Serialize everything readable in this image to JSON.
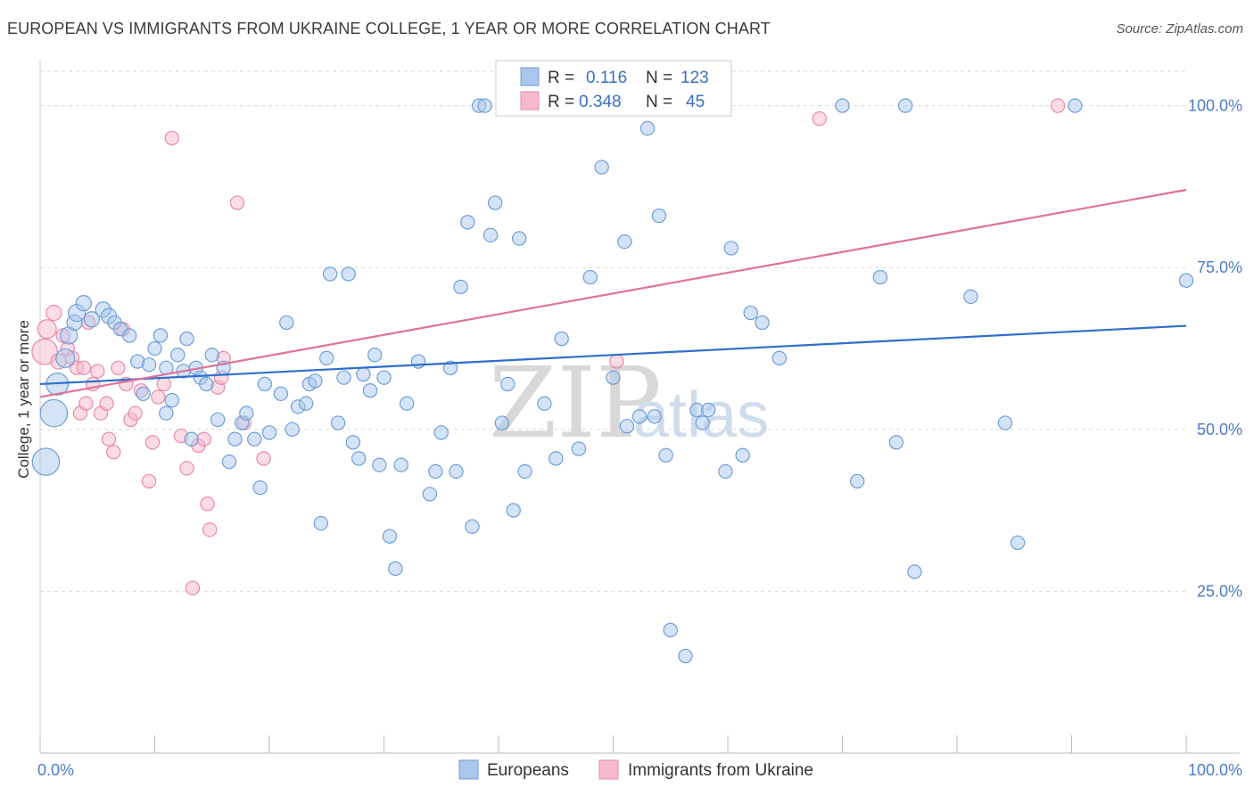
{
  "header": {
    "title": "EUROPEAN VS IMMIGRANTS FROM UKRAINE COLLEGE, 1 YEAR OR MORE CORRELATION CHART",
    "source": "Source: ZipAtlas.com"
  },
  "watermark": {
    "zip": "ZIP",
    "atlas": "atlas"
  },
  "legend": {
    "rows": [
      {
        "r_label": "R =",
        "r_value": "0.116",
        "n_label": "N =",
        "n_value": "123",
        "color": "#a9c7ec"
      },
      {
        "r_label": "R =",
        "r_value": "0.348",
        "n_label": "N =",
        "n_value": "45",
        "color": "#f7b9cc"
      }
    ]
  },
  "bottom_legend": {
    "europeans": "Europeans",
    "ukraine": "Immigrants from Ukraine"
  },
  "colors": {
    "blue_fill": "#a9c7ec",
    "blue_stroke": "#6f9fd8",
    "blue_line": "#2f6fcb",
    "pink_fill": "#f7b9cc",
    "pink_stroke": "#e88aa8",
    "pink_line": "#e0729a",
    "grid": "#d9d9d9",
    "axis_text": "#4a7cc7"
  },
  "chart_data": {
    "type": "scatter",
    "title": "EUROPEAN VS IMMIGRANTS FROM UKRAINE COLLEGE, 1 YEAR OR MORE CORRELATION CHART",
    "xlabel": "",
    "ylabel": "College, 1 year or more",
    "xlim": [
      0,
      100
    ],
    "ylim": [
      0,
      106
    ],
    "x_tick_labels": [
      "0.0%",
      "100.0%"
    ],
    "y_ticks": [
      25,
      50,
      75,
      100
    ],
    "y_tick_labels": [
      "25.0%",
      "50.0%",
      "75.0%",
      "100.0%"
    ],
    "series": [
      {
        "name": "Europeans",
        "R": 0.116,
        "N": 123,
        "trend": {
          "x": [
            0,
            100
          ],
          "y": [
            57.0,
            66.0
          ]
        },
        "points": [
          [
            0.5,
            45,
            1.6
          ],
          [
            1.2,
            52.5,
            1.6
          ],
          [
            1.5,
            57,
            1.3
          ],
          [
            2.2,
            61,
            1.1
          ],
          [
            2.5,
            64.5,
            1
          ],
          [
            3.0,
            66.5,
            0.9
          ],
          [
            3.2,
            68,
            1
          ],
          [
            3.8,
            69.5,
            0.9
          ],
          [
            4.5,
            67,
            0.9
          ],
          [
            5.5,
            68.5,
            0.9
          ],
          [
            6.0,
            67.5,
            0.9
          ],
          [
            6.5,
            66.5,
            0.8
          ],
          [
            7.0,
            65.5,
            0.8
          ],
          [
            7.8,
            64.5,
            0.8
          ],
          [
            8.5,
            60.5,
            0.8
          ],
          [
            9.0,
            55.5,
            0.8
          ],
          [
            9.5,
            60,
            0.8
          ],
          [
            10.0,
            62.5,
            0.8
          ],
          [
            10.5,
            64.5,
            0.8
          ],
          [
            11.0,
            59.5,
            0.8
          ],
          [
            11.0,
            52.5,
            0.8
          ],
          [
            11.5,
            54.5,
            0.8
          ],
          [
            12.0,
            61.5,
            0.8
          ],
          [
            12.5,
            59.0,
            0.8
          ],
          [
            12.8,
            64,
            0.8
          ],
          [
            13.2,
            48.5,
            0.8
          ],
          [
            13.6,
            59.5,
            0.8
          ],
          [
            14.0,
            58,
            0.8
          ],
          [
            14.5,
            57,
            0.8
          ],
          [
            15.0,
            61.5,
            0.8
          ],
          [
            15.5,
            51.5,
            0.8
          ],
          [
            16.0,
            59.5,
            0.8
          ],
          [
            16.5,
            45,
            0.8
          ],
          [
            17.0,
            48.5,
            0.8
          ],
          [
            17.6,
            51,
            0.8
          ],
          [
            18.0,
            52.5,
            0.8
          ],
          [
            18.7,
            48.5,
            0.8
          ],
          [
            19.2,
            41,
            0.8
          ],
          [
            19.6,
            57,
            0.8
          ],
          [
            20.0,
            49.5,
            0.8
          ],
          [
            21.0,
            55.5,
            0.8
          ],
          [
            21.5,
            66.5,
            0.8
          ],
          [
            22.0,
            50,
            0.8
          ],
          [
            22.5,
            53.5,
            0.8
          ],
          [
            23.2,
            54,
            0.8
          ],
          [
            23.5,
            57,
            0.8
          ],
          [
            24.0,
            57.5,
            0.8
          ],
          [
            24.5,
            35.5,
            0.8
          ],
          [
            25.0,
            61,
            0.8
          ],
          [
            25.3,
            74,
            0.8
          ],
          [
            26.0,
            51,
            0.8
          ],
          [
            26.5,
            58,
            0.8
          ],
          [
            26.9,
            74,
            0.8
          ],
          [
            27.3,
            48,
            0.8
          ],
          [
            27.8,
            45.5,
            0.8
          ],
          [
            28.2,
            58.5,
            0.8
          ],
          [
            28.8,
            56,
            0.8
          ],
          [
            29.2,
            61.5,
            0.8
          ],
          [
            29.6,
            44.5,
            0.8
          ],
          [
            30.0,
            58,
            0.8
          ],
          [
            30.5,
            33.5,
            0.8
          ],
          [
            31.0,
            28.5,
            0.8
          ],
          [
            31.5,
            44.5,
            0.8
          ],
          [
            32.0,
            54,
            0.8
          ],
          [
            33.0,
            60.5,
            0.8
          ],
          [
            34.0,
            40,
            0.8
          ],
          [
            34.5,
            43.5,
            0.8
          ],
          [
            35.0,
            49.5,
            0.8
          ],
          [
            35.8,
            59.5,
            0.8
          ],
          [
            36.3,
            43.5,
            0.8
          ],
          [
            36.7,
            72,
            0.8
          ],
          [
            37.3,
            82,
            0.8
          ],
          [
            37.7,
            35,
            0.8
          ],
          [
            38.3,
            100,
            0.8
          ],
          [
            38.8,
            100,
            0.8
          ],
          [
            39.3,
            80,
            0.8
          ],
          [
            39.7,
            85,
            0.8
          ],
          [
            40.3,
            51,
            0.8
          ],
          [
            40.8,
            57,
            0.8
          ],
          [
            41.3,
            37.5,
            0.8
          ],
          [
            41.8,
            79.5,
            0.8
          ],
          [
            42.3,
            43.5,
            0.8
          ],
          [
            43.3,
            100,
            0.8
          ],
          [
            44.0,
            54,
            0.8
          ],
          [
            45.0,
            45.5,
            0.8
          ],
          [
            45.5,
            64,
            0.8
          ],
          [
            47.0,
            47,
            0.8
          ],
          [
            48.0,
            73.5,
            0.8
          ],
          [
            49.0,
            90.5,
            0.8
          ],
          [
            50.0,
            58,
            0.8
          ],
          [
            51.0,
            79,
            0.8
          ],
          [
            51.2,
            50.5,
            0.8
          ],
          [
            52.3,
            52,
            0.8
          ],
          [
            53.0,
            96.5,
            0.8
          ],
          [
            53.6,
            52,
            0.8
          ],
          [
            54.0,
            83,
            0.8
          ],
          [
            54.6,
            46,
            0.8
          ],
          [
            55.0,
            19,
            0.8
          ],
          [
            56.3,
            15,
            0.8
          ],
          [
            57.3,
            53,
            0.8
          ],
          [
            57.8,
            51,
            0.8
          ],
          [
            58.3,
            53,
            0.8
          ],
          [
            59.8,
            43.5,
            0.8
          ],
          [
            60.3,
            78,
            0.8
          ],
          [
            61.3,
            46,
            0.8
          ],
          [
            62.0,
            68,
            0.8
          ],
          [
            63.0,
            66.5,
            0.8
          ],
          [
            64.5,
            61,
            0.8
          ],
          [
            70.0,
            100,
            0.8
          ],
          [
            71.3,
            42,
            0.8
          ],
          [
            73.3,
            73.5,
            0.8
          ],
          [
            74.7,
            48,
            0.8
          ],
          [
            75.5,
            100,
            0.8
          ],
          [
            76.3,
            28,
            0.8
          ],
          [
            81.2,
            70.5,
            0.8
          ],
          [
            84.2,
            51,
            0.8
          ],
          [
            85.3,
            32.5,
            0.8
          ],
          [
            90.3,
            100,
            0.8
          ],
          [
            100,
            73,
            0.8
          ]
        ]
      },
      {
        "name": "Immigrants from Ukraine",
        "R": 0.348,
        "N": 45,
        "trend": {
          "x": [
            0,
            100
          ],
          "y": [
            55.0,
            87.0
          ]
        },
        "points": [
          [
            0.4,
            62,
            1.5
          ],
          [
            0.6,
            65.5,
            1.1
          ],
          [
            1.2,
            68,
            0.9
          ],
          [
            1.6,
            60.5,
            0.9
          ],
          [
            2.0,
            64.5,
            0.8
          ],
          [
            2.4,
            62.5,
            0.8
          ],
          [
            2.8,
            61,
            0.8
          ],
          [
            3.2,
            59.5,
            0.8
          ],
          [
            3.5,
            52.5,
            0.8
          ],
          [
            3.8,
            59.5,
            0.8
          ],
          [
            4.0,
            54,
            0.8
          ],
          [
            4.2,
            66.5,
            0.8
          ],
          [
            4.6,
            57,
            0.8
          ],
          [
            5.0,
            59,
            0.8
          ],
          [
            5.3,
            52.5,
            0.8
          ],
          [
            5.8,
            54,
            0.8
          ],
          [
            6.0,
            48.5,
            0.8
          ],
          [
            6.4,
            46.5,
            0.8
          ],
          [
            6.8,
            59.5,
            0.8
          ],
          [
            7.2,
            65.5,
            0.8
          ],
          [
            7.5,
            57,
            0.8
          ],
          [
            7.9,
            51.5,
            0.8
          ],
          [
            8.3,
            52.5,
            0.8
          ],
          [
            8.8,
            56,
            0.8
          ],
          [
            9.5,
            42,
            0.8
          ],
          [
            9.8,
            48,
            0.8
          ],
          [
            10.3,
            55,
            0.8
          ],
          [
            10.8,
            57,
            0.8
          ],
          [
            11.5,
            95,
            0.8
          ],
          [
            12.3,
            49,
            0.8
          ],
          [
            12.8,
            44,
            0.8
          ],
          [
            13.3,
            25.5,
            0.8
          ],
          [
            13.8,
            47.5,
            0.8
          ],
          [
            14.3,
            48.5,
            0.8
          ],
          [
            14.6,
            38.5,
            0.8
          ],
          [
            14.8,
            34.5,
            0.8
          ],
          [
            15.5,
            56.5,
            0.8
          ],
          [
            15.8,
            58,
            0.8
          ],
          [
            16.0,
            61,
            0.8
          ],
          [
            17.2,
            85,
            0.8
          ],
          [
            17.8,
            51,
            0.8
          ],
          [
            19.5,
            45.5,
            0.8
          ],
          [
            50.3,
            60.5,
            0.8
          ],
          [
            68.0,
            98,
            0.8
          ],
          [
            88.8,
            100,
            0.8
          ]
        ]
      }
    ]
  }
}
